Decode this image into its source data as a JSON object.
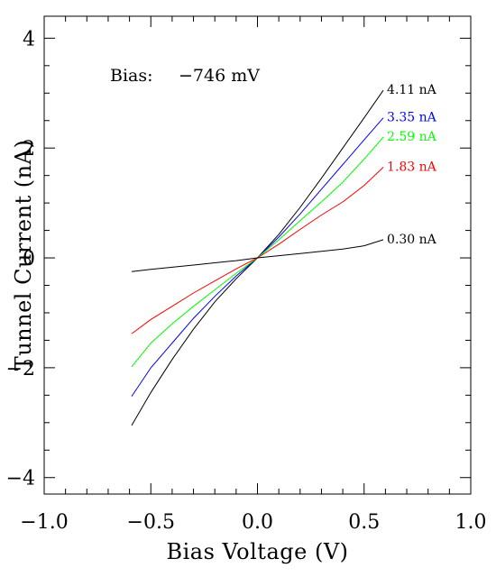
{
  "chart_data": {
    "type": "line",
    "title": "",
    "xlabel": "Bias Voltage (V)",
    "ylabel": "Tunnel Current (nA)",
    "xlim": [
      -1.0,
      1.0
    ],
    "ylim": [
      -4.3,
      4.4
    ],
    "x_ticks": [
      {
        "value": -1.0,
        "label": "−1.0"
      },
      {
        "value": -0.5,
        "label": "−0.5"
      },
      {
        "value": 0.0,
        "label": "0.0"
      },
      {
        "value": 0.5,
        "label": "0.5"
      },
      {
        "value": 1.0,
        "label": "1.0"
      }
    ],
    "y_ticks": [
      {
        "value": -4,
        "label": "−4"
      },
      {
        "value": -2,
        "label": "−2"
      },
      {
        "value": 0,
        "label": "0"
      },
      {
        "value": 2,
        "label": "2"
      },
      {
        "value": 4,
        "label": "4"
      }
    ],
    "grid": false,
    "annotation": {
      "prefix": "Bias:",
      "value": "−746 mV"
    },
    "series": [
      {
        "name": "4.11 nA",
        "color": "#000000",
        "x": [
          -0.59,
          -0.5,
          -0.4,
          -0.3,
          -0.2,
          -0.1,
          0.0,
          0.1,
          0.2,
          0.3,
          0.4,
          0.5,
          0.59
        ],
        "y": [
          -3.05,
          -2.45,
          -1.85,
          -1.3,
          -0.8,
          -0.38,
          0.0,
          0.43,
          0.92,
          1.45,
          2.0,
          2.55,
          3.05
        ]
      },
      {
        "name": "3.35 nA",
        "color": "#0000ff",
        "x": [
          -0.59,
          -0.5,
          -0.4,
          -0.3,
          -0.2,
          -0.1,
          0.0,
          0.1,
          0.2,
          0.3,
          0.4,
          0.5,
          0.59
        ],
        "y": [
          -2.52,
          -2.0,
          -1.55,
          -1.1,
          -0.7,
          -0.33,
          0.0,
          0.38,
          0.8,
          1.25,
          1.7,
          2.15,
          2.55
        ]
      },
      {
        "name": "2.59 nA",
        "color": "#00ff00",
        "x": [
          -0.59,
          -0.5,
          -0.4,
          -0.3,
          -0.2,
          -0.1,
          0.0,
          0.1,
          0.2,
          0.3,
          0.4,
          0.5,
          0.59
        ],
        "y": [
          -1.98,
          -1.55,
          -1.2,
          -0.88,
          -0.58,
          -0.28,
          0.0,
          0.33,
          0.68,
          1.02,
          1.38,
          1.8,
          2.2
        ]
      },
      {
        "name": "1.83 nA",
        "color": "#ff0000",
        "x": [
          -0.59,
          -0.5,
          -0.4,
          -0.3,
          -0.2,
          -0.1,
          0.0,
          0.1,
          0.2,
          0.3,
          0.4,
          0.5,
          0.59
        ],
        "y": [
          -1.38,
          -1.12,
          -0.88,
          -0.64,
          -0.42,
          -0.2,
          0.0,
          0.25,
          0.52,
          0.78,
          1.02,
          1.32,
          1.65
        ]
      },
      {
        "name": "0.30 nA",
        "color": "#000000",
        "x": [
          -0.59,
          -0.5,
          -0.4,
          -0.3,
          -0.2,
          -0.1,
          0.0,
          0.1,
          0.2,
          0.3,
          0.4,
          0.5,
          0.59
        ],
        "y": [
          -0.25,
          -0.21,
          -0.17,
          -0.13,
          -0.09,
          -0.05,
          0.0,
          0.04,
          0.08,
          0.12,
          0.16,
          0.22,
          0.33
        ]
      }
    ]
  }
}
